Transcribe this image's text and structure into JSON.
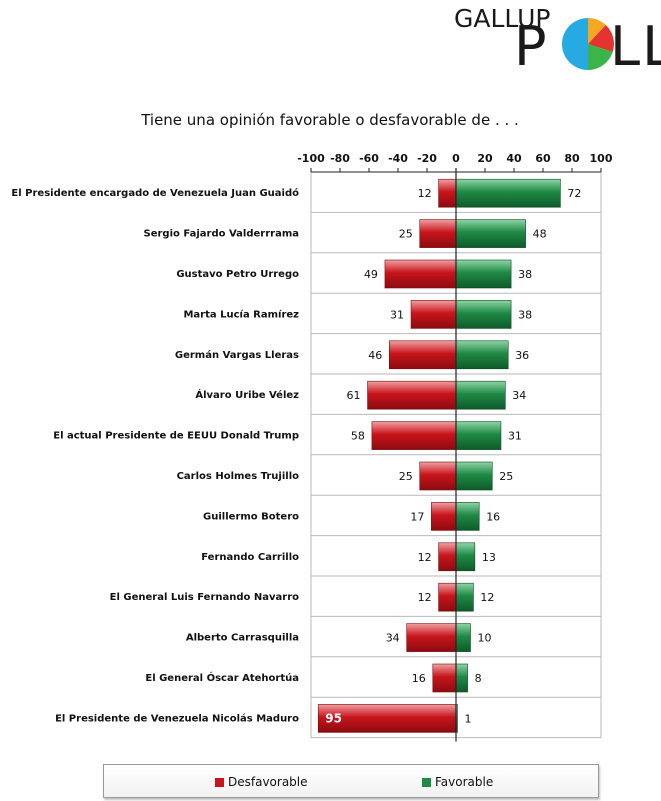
{
  "logo": {
    "top_text": "GALLUP",
    "bottom_text_p": "P",
    "bottom_text_ll": "LL"
  },
  "colors": {
    "desfavorable": "#c8151c",
    "favorable": "#1f8a45",
    "grid": "#b9b9b9",
    "axis": "#222222",
    "pie": [
      "#f5a623",
      "#e3342f",
      "#3bb54a",
      "#27a9e1"
    ]
  },
  "chart_data": {
    "type": "bar",
    "orientation": "horizontal",
    "layout": "diverging",
    "title": "Tiene una opinión favorable o desfavorable de . . .",
    "xlim": [
      -100,
      100
    ],
    "xticks": [
      "-100",
      "-80",
      "-60",
      "-40",
      "-20",
      "0",
      "20",
      "40",
      "60",
      "80",
      "100"
    ],
    "grid": true,
    "legend_position": "bottom",
    "categories": [
      "El Presidente encargado de Venezuela Juan Guaidó",
      "Sergio Fajardo Valderrrama",
      "Gustavo Petro Urrego",
      "Marta Lucía Ramírez",
      "Germán Vargas Lleras",
      "Álvaro Uribe Vélez",
      "El actual Presidente de EEUU Donald Trump",
      "Carlos Holmes Trujillo",
      "Guillermo Botero",
      "Fernando Carrillo",
      "El General Luis Fernando Navarro",
      "Alberto Carrasquilla",
      "El General Óscar Atehortúa",
      "El Presidente de Venezuela Nicolás Maduro"
    ],
    "series": [
      {
        "name": "Desfavorable",
        "values": [
          12,
          25,
          49,
          31,
          46,
          61,
          58,
          25,
          17,
          12,
          12,
          34,
          16,
          95
        ]
      },
      {
        "name": "Favorable",
        "values": [
          72,
          48,
          38,
          38,
          36,
          34,
          31,
          25,
          16,
          13,
          12,
          10,
          8,
          1
        ]
      }
    ]
  }
}
